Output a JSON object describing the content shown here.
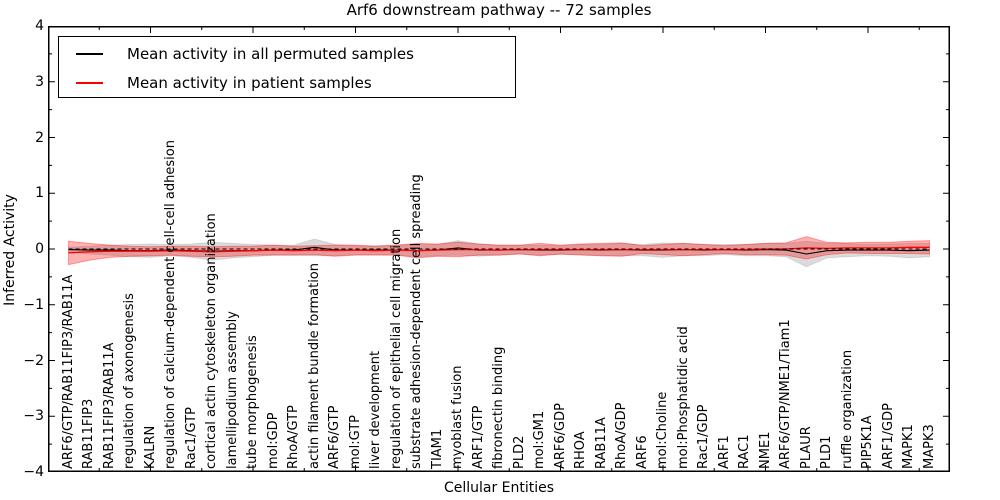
{
  "title": "Arf6 downstream pathway -- 72 samples",
  "axes": {
    "x_label": "Cellular Entities",
    "y_label": "Inferred Activity",
    "y_ticks": [
      "4",
      "3",
      "2",
      "1",
      "0",
      "−1",
      "−2",
      "−3",
      "−4"
    ],
    "ylim": [
      -4,
      4
    ]
  },
  "legend": {
    "items": [
      {
        "label": "Mean activity in all permuted samples",
        "color": "#000000"
      },
      {
        "label": "Mean activity in patient samples",
        "color": "#ff0000"
      }
    ]
  },
  "chart_data": {
    "type": "line",
    "title": "Arf6 downstream pathway -- 72 samples",
    "xlabel": "Cellular Entities",
    "ylabel": "Inferred Activity",
    "ylim": [
      -4,
      4
    ],
    "grid": false,
    "legend_position": "upper left",
    "zero_line": {
      "style": "dashed",
      "color": "#000000",
      "y": 0
    },
    "categories": [
      "ARF6/GTP/RAB11FIP3/RAB11A",
      "RAB11FIP3",
      "RAB11FIP3/RAB11A",
      "regulation of axonogenesis",
      "KALRN",
      "regulation of calcium-dependent cell-cell adhesion",
      "Rac1/GTP",
      "cortical actin cytoskeleton organization",
      "lamellipodium assembly",
      "tube morphogenesis",
      "mol:GDP",
      "RhoA/GTP",
      "actin filament bundle formation",
      "ARF6/GTP",
      "mol:GTP",
      "liver development",
      "regulation of epithelial cell migration",
      "substrate adhesion-dependent cell spreading",
      "TIAM1",
      "myoblast fusion",
      "ARF1/GTP",
      "fibronectin binding",
      "PLD2",
      "mol:GM1",
      "ARF6/GDP",
      "RHOA",
      "RAB11A",
      "RhoA/GDP",
      "ARF6",
      "mol:Choline",
      "mol:Phosphatidic acid",
      "Rac1/GDP",
      "ARF1",
      "RAC1",
      "NME1",
      "ARF6/GTP/NME1/Tiam1",
      "PLAUR",
      "PLD1",
      "ruffle organization",
      "PIP5K1A",
      "ARF1/GDP",
      "MAPK1",
      "MAPK3"
    ],
    "series": [
      {
        "name": "Mean activity in all permuted samples",
        "color": "#000000",
        "band_fill": "rgba(0,0,0,0.14)",
        "band_edge": "rgba(0,0,0,0.10)",
        "mean": [
          -0.01,
          -0.02,
          -0.02,
          -0.03,
          -0.03,
          -0.02,
          -0.03,
          -0.04,
          -0.03,
          -0.03,
          -0.02,
          -0.02,
          0.03,
          -0.02,
          -0.02,
          -0.02,
          -0.02,
          -0.03,
          -0.02,
          0.02,
          -0.02,
          -0.02,
          -0.01,
          -0.02,
          -0.02,
          -0.01,
          -0.02,
          -0.01,
          -0.02,
          -0.02,
          -0.01,
          -0.02,
          -0.01,
          -0.02,
          -0.01,
          -0.02,
          -0.09,
          -0.03,
          -0.02,
          -0.02,
          -0.02,
          -0.03,
          -0.02
        ],
        "std": [
          0.04,
          0.07,
          0.09,
          0.11,
          0.12,
          0.1,
          0.12,
          0.16,
          0.13,
          0.11,
          0.09,
          0.09,
          0.15,
          0.1,
          0.08,
          0.08,
          0.09,
          0.11,
          0.1,
          0.13,
          0.11,
          0.09,
          0.08,
          0.09,
          0.08,
          0.09,
          0.1,
          0.11,
          0.1,
          0.13,
          0.11,
          0.1,
          0.09,
          0.1,
          0.11,
          0.12,
          0.23,
          0.13,
          0.12,
          0.1,
          0.11,
          0.13,
          0.12
        ]
      },
      {
        "name": "Mean activity in patient samples",
        "color": "#ff0000",
        "band_fill": "rgba(255,0,0,0.30)",
        "band_edge": "rgba(255,0,0,0.35)",
        "mean": [
          -0.07,
          -0.05,
          -0.04,
          -0.04,
          -0.04,
          -0.03,
          -0.04,
          -0.05,
          -0.04,
          -0.03,
          -0.02,
          -0.03,
          -0.02,
          -0.03,
          -0.02,
          -0.03,
          -0.02,
          -0.03,
          -0.02,
          -0.01,
          -0.01,
          -0.02,
          -0.01,
          -0.01,
          -0.01,
          -0.01,
          -0.01,
          -0.01,
          -0.01,
          -0.01,
          -0.01,
          -0.01,
          -0.01,
          -0.01,
          0.0,
          0.0,
          0.02,
          0.01,
          0.02,
          0.02,
          0.02,
          0.03,
          0.03
        ],
        "std": [
          0.21,
          0.15,
          0.11,
          0.09,
          0.08,
          0.08,
          0.09,
          0.09,
          0.09,
          0.08,
          0.09,
          0.08,
          0.08,
          0.1,
          0.09,
          0.08,
          0.09,
          0.13,
          0.11,
          0.13,
          0.1,
          0.09,
          0.08,
          0.11,
          0.08,
          0.1,
          0.11,
          0.12,
          0.07,
          0.09,
          0.11,
          0.09,
          0.07,
          0.09,
          0.1,
          0.11,
          0.2,
          0.11,
          0.09,
          0.1,
          0.1,
          0.11,
          0.12
        ]
      }
    ]
  }
}
